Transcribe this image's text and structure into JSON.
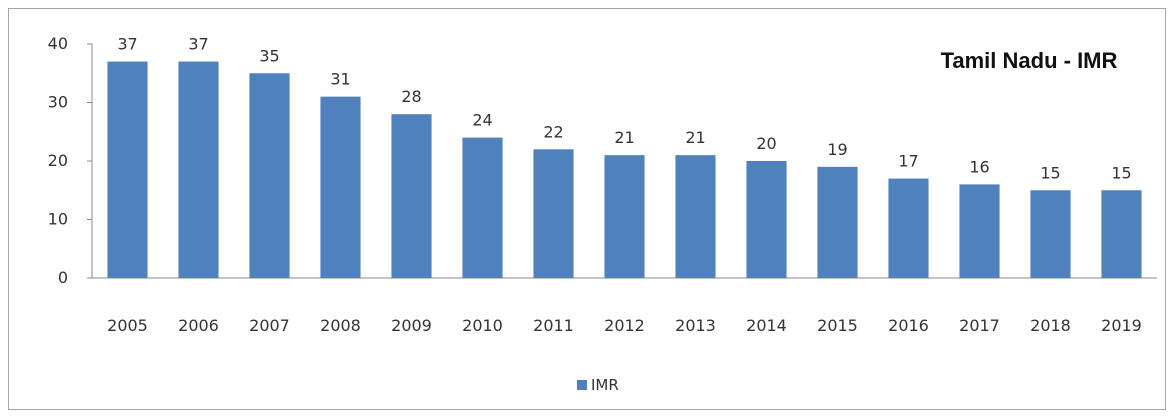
{
  "chart_data": {
    "type": "bar",
    "title": "Tamil Nadu - IMR",
    "categories": [
      "2005",
      "2006",
      "2007",
      "2008",
      "2009",
      "2010",
      "2011",
      "2012",
      "2013",
      "2014",
      "2015",
      "2016",
      "2017",
      "2018",
      "2019"
    ],
    "series": [
      {
        "name": "IMR",
        "values": [
          37,
          37,
          35,
          31,
          28,
          24,
          22,
          21,
          21,
          20,
          19,
          17,
          16,
          15,
          15
        ],
        "color": "#4f81bd"
      }
    ],
    "ylim": [
      0,
      40
    ],
    "yticks": [
      0,
      10,
      20,
      30,
      40
    ],
    "xlabel": "",
    "ylabel": "",
    "grid": false,
    "legend_position": "bottom",
    "data_labels": true
  }
}
